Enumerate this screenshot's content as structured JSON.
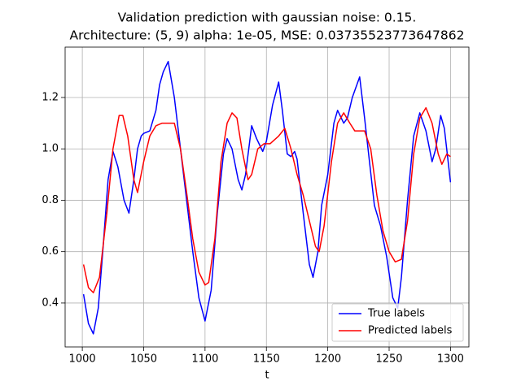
{
  "chart_data": {
    "type": "line",
    "title": [
      "Validation prediction with gaussian noise: 0.15.",
      "Architecture: (5, 9) alpha: 1e-05, MSE: 0.03735523773647862"
    ],
    "xlabel": "t",
    "xlim": [
      986,
      1315
    ],
    "xticks": [
      1000,
      1050,
      1100,
      1150,
      1200,
      1250,
      1300
    ],
    "ylim": [
      0.229,
      1.396
    ],
    "yticks": [
      0.4,
      0.6,
      0.8,
      {
        "value": 1,
        "label": "1.0"
      },
      1.2
    ],
    "grid": true,
    "legend": "lower right",
    "series": [
      {
        "name": "True labels",
        "color": "#0000ff",
        "x": [
          1001,
          1005,
          1009,
          1013,
          1017,
          1021,
          1025,
          1029,
          1034,
          1038,
          1042,
          1045,
          1048,
          1050,
          1055,
          1060,
          1063,
          1066,
          1070,
          1075,
          1080,
          1085,
          1090,
          1095,
          1100,
          1105,
          1110,
          1115,
          1118,
          1122,
          1127,
          1130,
          1133,
          1138,
          1142,
          1147,
          1150,
          1155,
          1160,
          1163,
          1167,
          1170,
          1173,
          1175,
          1180,
          1185,
          1188,
          1192,
          1195,
          1200,
          1205,
          1208,
          1213,
          1216,
          1220,
          1226,
          1230,
          1234,
          1238,
          1243,
          1248,
          1253,
          1257,
          1260,
          1265,
          1270,
          1275,
          1280,
          1285,
          1288,
          1292,
          1295,
          1300
        ],
        "values": [
          0.434,
          0.32,
          0.28,
          0.38,
          0.62,
          0.88,
          0.99,
          0.93,
          0.8,
          0.75,
          0.88,
          1.0,
          1.05,
          1.06,
          1.07,
          1.15,
          1.25,
          1.3,
          1.34,
          1.2,
          1.0,
          0.8,
          0.6,
          0.42,
          0.33,
          0.45,
          0.75,
          0.98,
          1.04,
          1.0,
          0.88,
          0.84,
          0.9,
          1.09,
          1.04,
          0.99,
          1.03,
          1.17,
          1.26,
          1.15,
          0.98,
          0.97,
          0.99,
          0.96,
          0.75,
          0.55,
          0.5,
          0.6,
          0.78,
          0.9,
          1.1,
          1.15,
          1.1,
          1.12,
          1.2,
          1.28,
          1.12,
          0.95,
          0.78,
          0.7,
          0.58,
          0.42,
          0.38,
          0.5,
          0.8,
          1.05,
          1.14,
          1.07,
          0.95,
          1.0,
          1.13,
          1.08,
          0.87
        ]
      },
      {
        "name": "Predicted labels",
        "color": "#ff0000",
        "x": [
          1001,
          1005,
          1009,
          1014,
          1020,
          1025,
          1030,
          1033,
          1037,
          1042,
          1045,
          1050,
          1055,
          1060,
          1065,
          1070,
          1075,
          1080,
          1085,
          1090,
          1095,
          1100,
          1103,
          1108,
          1113,
          1118,
          1122,
          1126,
          1130,
          1135,
          1138,
          1143,
          1148,
          1153,
          1160,
          1165,
          1170,
          1175,
          1180,
          1185,
          1190,
          1193,
          1197,
          1203,
          1208,
          1213,
          1218,
          1222,
          1230,
          1235,
          1240,
          1245,
          1250,
          1255,
          1260,
          1265,
          1270,
          1275,
          1280,
          1285,
          1290,
          1293,
          1297,
          1300
        ],
        "values": [
          0.55,
          0.46,
          0.44,
          0.5,
          0.75,
          1.0,
          1.13,
          1.13,
          1.05,
          0.88,
          0.83,
          0.95,
          1.05,
          1.09,
          1.1,
          1.1,
          1.1,
          1.0,
          0.83,
          0.65,
          0.52,
          0.47,
          0.48,
          0.65,
          0.95,
          1.1,
          1.14,
          1.12,
          1.0,
          0.88,
          0.9,
          1.0,
          1.02,
          1.02,
          1.05,
          1.08,
          1.0,
          0.9,
          0.82,
          0.72,
          0.62,
          0.6,
          0.7,
          0.95,
          1.1,
          1.14,
          1.1,
          1.07,
          1.07,
          1.0,
          0.82,
          0.68,
          0.6,
          0.56,
          0.57,
          0.72,
          0.98,
          1.12,
          1.16,
          1.1,
          0.98,
          0.94,
          0.98,
          0.97
        ]
      }
    ]
  }
}
